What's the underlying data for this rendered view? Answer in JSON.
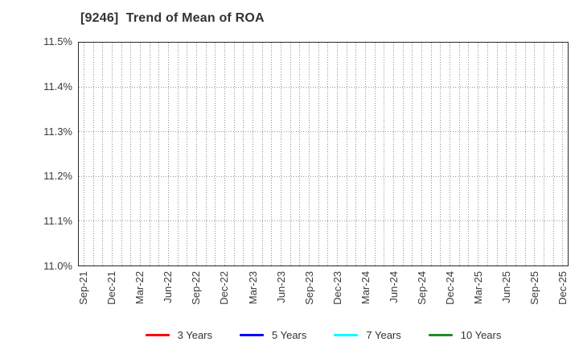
{
  "chart_data": {
    "type": "line",
    "title": "[9246]  Trend of Mean of ROA",
    "x_categories": [
      "Sep-21",
      "Dec-21",
      "Mar-22",
      "Jun-22",
      "Sep-22",
      "Dec-22",
      "Mar-23",
      "Jun-23",
      "Sep-23",
      "Dec-23",
      "Mar-24",
      "Jun-24",
      "Sep-24",
      "Dec-24",
      "Mar-25",
      "Jun-25",
      "Sep-25",
      "Dec-25"
    ],
    "y_tick_labels": [
      "11.0%",
      "11.1%",
      "11.2%",
      "11.3%",
      "11.4%",
      "11.5%"
    ],
    "ylim": [
      11.0,
      11.5
    ],
    "grid": "dotted, monthly vertical lines and horizontal lines at each 0.1% tick",
    "legend_position": "bottom-center",
    "series": [
      {
        "name": "3 Years",
        "color": "#ff0000",
        "values": []
      },
      {
        "name": "5 Years",
        "color": "#0000ff",
        "values": []
      },
      {
        "name": "7 Years",
        "color": "#00ffff",
        "values": []
      },
      {
        "name": "10 Years",
        "color": "#228b22",
        "values": []
      }
    ],
    "note": "plot area is empty - no data points are drawn for any series"
  },
  "colors": {
    "background": "#ffffff",
    "plot_border": "#2a2a2a",
    "gridline": "#9a9a9a",
    "title_text": "#333333",
    "tick_text": "#3a3a3a"
  }
}
